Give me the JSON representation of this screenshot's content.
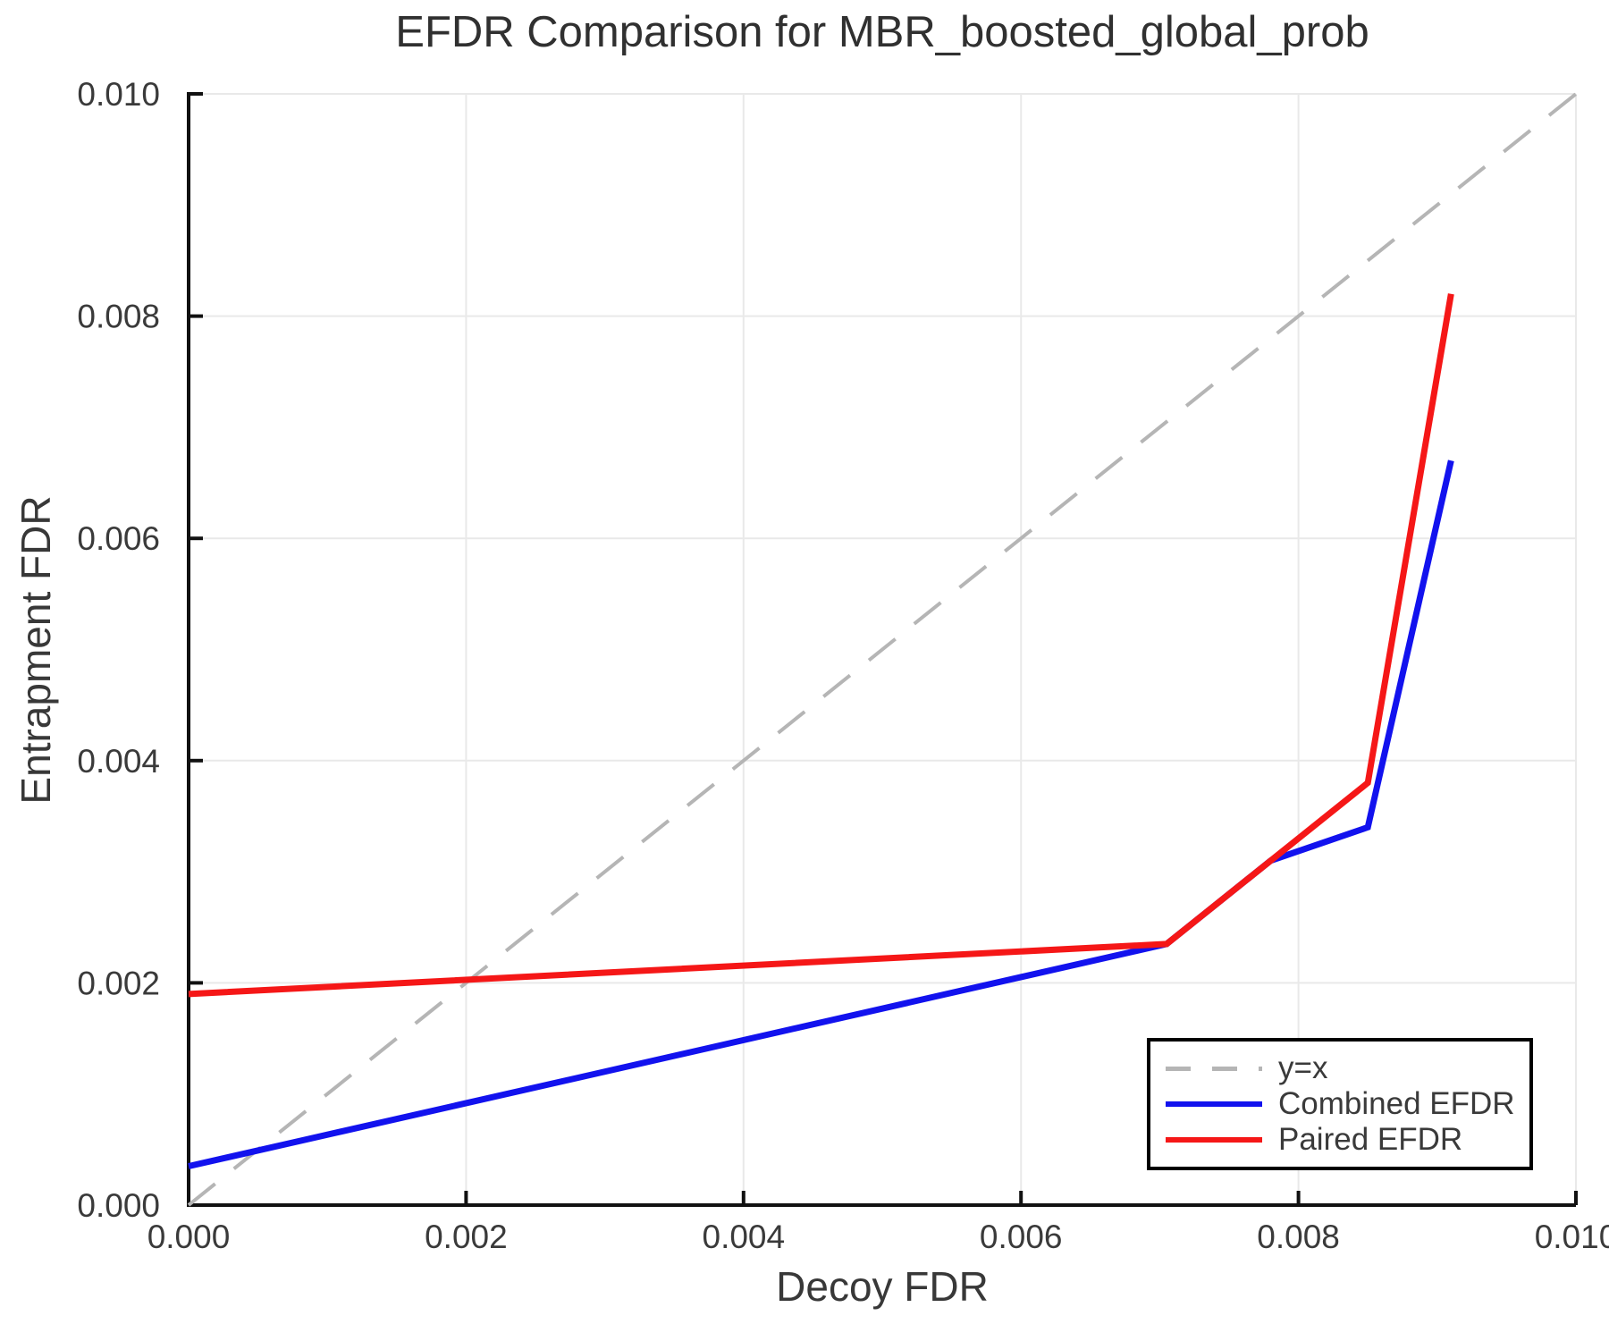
{
  "chart_data": {
    "type": "line",
    "title": "EFDR Comparison for MBR_boosted_global_prob",
    "xlabel": "Decoy FDR",
    "ylabel": "Entrapment FDR",
    "xlim": [
      0.0,
      0.01
    ],
    "ylim": [
      0.0,
      0.01
    ],
    "xticks": [
      0.0,
      0.002,
      0.004,
      0.006,
      0.008,
      0.01
    ],
    "yticks": [
      0.0,
      0.002,
      0.004,
      0.006,
      0.008,
      0.01
    ],
    "xticklabels": [
      "0.000",
      "0.002",
      "0.004",
      "0.006",
      "0.008",
      "0.010"
    ],
    "yticklabels": [
      "0.000",
      "0.002",
      "0.004",
      "0.006",
      "0.008",
      "0.010"
    ],
    "grid": true,
    "axis_color": "#111111",
    "grid_color": "#e9e9e9",
    "text_color": "#3a3a3a",
    "legend": {
      "position": "lower right",
      "border_color": "#000000",
      "background": "#ffffff"
    },
    "series": [
      {
        "name": "y=x",
        "color": "#b5b5b5",
        "style": "dashed",
        "width": 4,
        "x": [
          0.0,
          0.01
        ],
        "y": [
          0.0,
          0.01
        ]
      },
      {
        "name": "Combined EFDR",
        "color": "#1212ee",
        "style": "solid",
        "width": 7,
        "x": [
          0.0,
          0.00705,
          0.0078,
          0.0085,
          0.0091
        ],
        "y": [
          0.00035,
          0.00235,
          0.0031,
          0.0034,
          0.0067
        ]
      },
      {
        "name": "Paired EFDR",
        "color": "#f51717",
        "style": "solid",
        "width": 7,
        "x": [
          0.0,
          0.00705,
          0.0085,
          0.0091
        ],
        "y": [
          0.0019,
          0.00235,
          0.0038,
          0.0082
        ]
      }
    ]
  }
}
